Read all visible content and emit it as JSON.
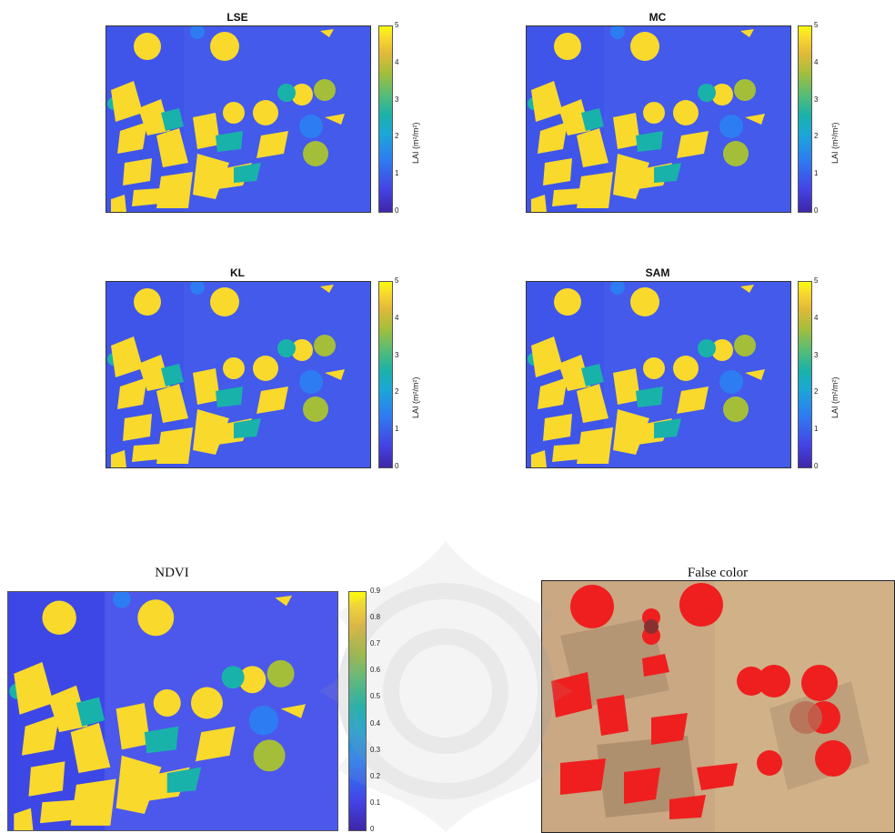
{
  "chart_data": [
    {
      "type": "heatmap",
      "title": "LSE",
      "colormap": "parula",
      "colorbar": {
        "label": "LAI (m²/m²)",
        "ticks": [
          "0",
          "1",
          "2",
          "3",
          "4",
          "5"
        ],
        "range": [
          0,
          5
        ]
      }
    },
    {
      "type": "heatmap",
      "title": "MC",
      "colormap": "parula",
      "colorbar": {
        "label": "LAI (m²/m²)",
        "ticks": [
          "0",
          "1",
          "2",
          "3",
          "4",
          "5"
        ],
        "range": [
          0,
          5
        ]
      }
    },
    {
      "type": "heatmap",
      "title": "KL",
      "colormap": "parula",
      "colorbar": {
        "label": "LAI (m²/m²)",
        "ticks": [
          "0",
          "1",
          "2",
          "3",
          "4",
          "5"
        ],
        "range": [
          0,
          5
        ]
      }
    },
    {
      "type": "heatmap",
      "title": "SAM",
      "colormap": "parula",
      "colorbar": {
        "label": "LAI (m²/m²)",
        "ticks": [
          "0",
          "1",
          "2",
          "3",
          "4",
          "5"
        ],
        "range": [
          0,
          5
        ]
      }
    },
    {
      "type": "heatmap",
      "title": "NDVI",
      "colormap": "parula",
      "colorbar": {
        "label": "",
        "ticks": [
          "0",
          "0.1",
          "0.2",
          "0.3",
          "0.4",
          "0.5",
          "0.6",
          "0.7",
          "0.8",
          "0.9"
        ],
        "range": [
          0,
          0.9
        ]
      }
    },
    {
      "type": "image",
      "title": "False color"
    }
  ],
  "colors": {
    "low": "#3e26a8",
    "mid_low": "#2e7cf1",
    "mid": "#19b2aa",
    "mid_high": "#a5be3a",
    "high": "#f9d92c",
    "top": "#f9fb0e",
    "false_red": "#ef1f1f",
    "false_bg": "#c9a883"
  }
}
